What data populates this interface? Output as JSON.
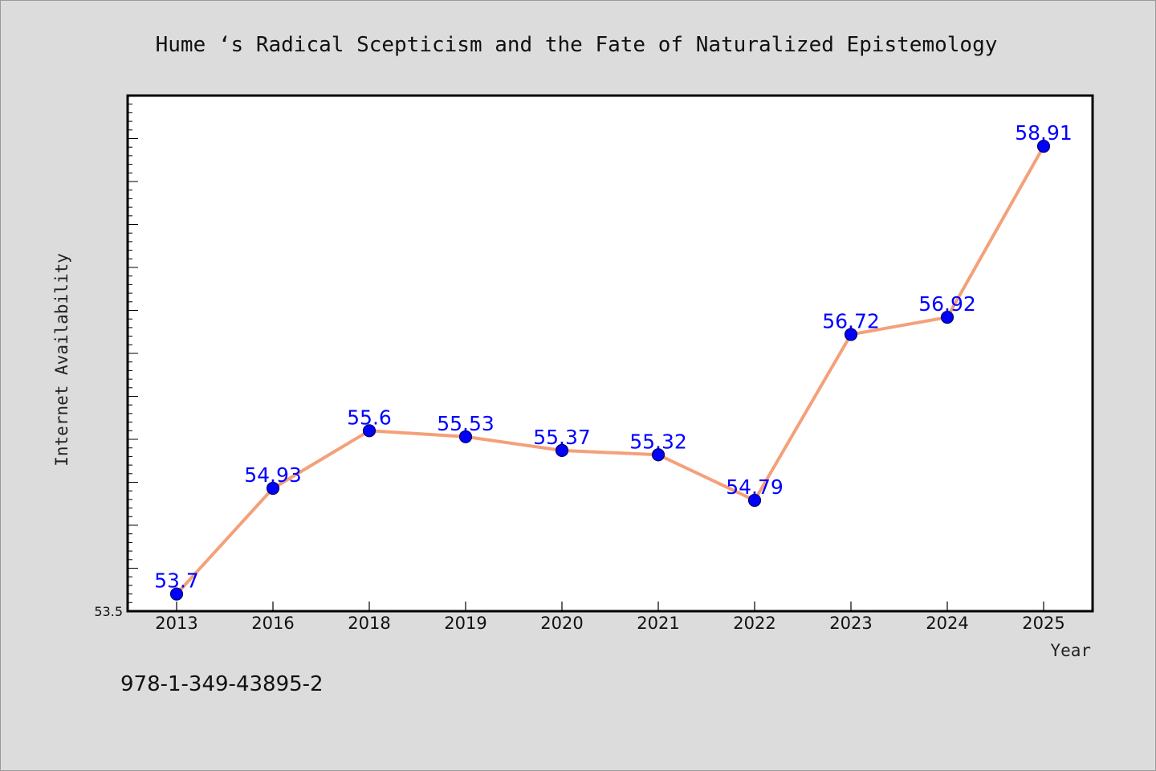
{
  "colors": {
    "background": "#dcdcdc",
    "plot_background": "#ffffff",
    "line": "#f4a07a",
    "marker": "#0000ff",
    "marker_edge": "#000066",
    "data_label": "#0000ff"
  },
  "footer": {
    "isbn": "978-1-349-43895-2"
  },
  "chart_data": {
    "type": "line",
    "title": "Hume ‘s Radical Scepticism and the Fate of Naturalized Epistemology",
    "xlabel": "Year",
    "ylabel": "Internet Availability",
    "categories": [
      "2013",
      "2016",
      "2018",
      "2019",
      "2020",
      "2021",
      "2022",
      "2023",
      "2024",
      "2025"
    ],
    "values": [
      53.7,
      54.93,
      55.6,
      55.53,
      55.37,
      55.32,
      54.79,
      56.72,
      56.92,
      58.91
    ],
    "data_labels": [
      "53.7",
      "54.93",
      "55.6",
      "55.53",
      "55.37",
      "55.32",
      "54.79",
      "56.72",
      "56.92",
      "58.91"
    ],
    "ylim": [
      53.5,
      59.5
    ],
    "y_tick_labels": [
      "53.5"
    ],
    "y_minor_step": 0.1,
    "y_major_step": 0.5,
    "grid": false,
    "legend": "none"
  }
}
